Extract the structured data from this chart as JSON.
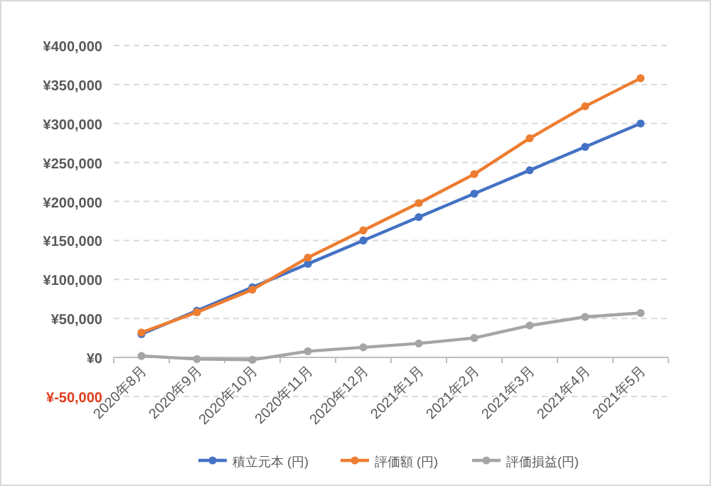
{
  "chart_data": {
    "type": "line",
    "categories": [
      "2020年8月",
      "2020年9月",
      "2020年10月",
      "2020年11月",
      "2020年12月",
      "2021年1月",
      "2021年2月",
      "2021年3月",
      "2021年4月",
      "2021年5月"
    ],
    "series": [
      {
        "name": "積立元本 (円)",
        "color": "#4472c4",
        "values": [
          30000,
          60000,
          90000,
          120000,
          150000,
          180000,
          210000,
          240000,
          270000,
          300000
        ]
      },
      {
        "name": "評価額 (円)",
        "color": "#ed7d31",
        "values": [
          32000,
          58000,
          87000,
          128000,
          163000,
          198000,
          235000,
          281000,
          322000,
          358000
        ]
      },
      {
        "name": "評価損益(円)",
        "color": "#a5a5a5",
        "values": [
          2000,
          -2000,
          -3000,
          8000,
          13000,
          18000,
          25000,
          41000,
          52000,
          57000
        ]
      }
    ],
    "ylim": [
      -50000,
      400000
    ],
    "yticks": [
      {
        "value": -50000,
        "label": "¥-50,000"
      },
      {
        "value": 0,
        "label": "¥0"
      },
      {
        "value": 50000,
        "label": "¥50,000"
      },
      {
        "value": 100000,
        "label": "¥100,000"
      },
      {
        "value": 150000,
        "label": "¥150,000"
      },
      {
        "value": 200000,
        "label": "¥200,000"
      },
      {
        "value": 250000,
        "label": "¥250,000"
      },
      {
        "value": 300000,
        "label": "¥300,000"
      },
      {
        "value": 350000,
        "label": "¥350,000"
      },
      {
        "value": 400000,
        "label": "¥400,000"
      }
    ],
    "grid": "y",
    "legend": "bottom",
    "marker": "circle",
    "line_style": "solid"
  }
}
